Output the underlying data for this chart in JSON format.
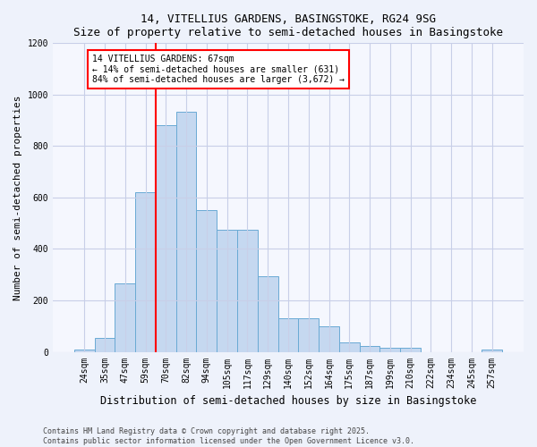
{
  "title1": "14, VITELLIUS GARDENS, BASINGSTOKE, RG24 9SG",
  "title2": "Size of property relative to semi-detached houses in Basingstoke",
  "xlabel": "Distribution of semi-detached houses by size in Basingstoke",
  "ylabel": "Number of semi-detached properties",
  "categories": [
    "24sqm",
    "35sqm",
    "47sqm",
    "59sqm",
    "70sqm",
    "82sqm",
    "94sqm",
    "105sqm",
    "117sqm",
    "129sqm",
    "140sqm",
    "152sqm",
    "164sqm",
    "175sqm",
    "187sqm",
    "199sqm",
    "210sqm",
    "222sqm",
    "234sqm",
    "245sqm",
    "257sqm"
  ],
  "values": [
    10,
    55,
    265,
    620,
    880,
    935,
    550,
    475,
    475,
    295,
    130,
    130,
    100,
    35,
    22,
    17,
    15,
    0,
    0,
    0,
    8
  ],
  "bar_color": "#c5d8f0",
  "bar_edge_color": "#6aaad4",
  "vline_color": "red",
  "annotation_text": "14 VITELLIUS GARDENS: 67sqm\n← 14% of semi-detached houses are smaller (631)\n84% of semi-detached houses are larger (3,672) →",
  "annotation_box_color": "white",
  "annotation_box_edge_color": "red",
  "ylim": [
    0,
    1200
  ],
  "yticks": [
    0,
    200,
    400,
    600,
    800,
    1000,
    1200
  ],
  "footnote": "Contains HM Land Registry data © Crown copyright and database right 2025.\nContains public sector information licensed under the Open Government Licence v3.0.",
  "bg_color": "#eef2fb",
  "plot_bg_color": "#f5f7fe",
  "grid_color": "#c8cfe8",
  "title_fontsize": 9,
  "tick_fontsize": 7,
  "ylabel_fontsize": 8,
  "xlabel_fontsize": 8.5
}
